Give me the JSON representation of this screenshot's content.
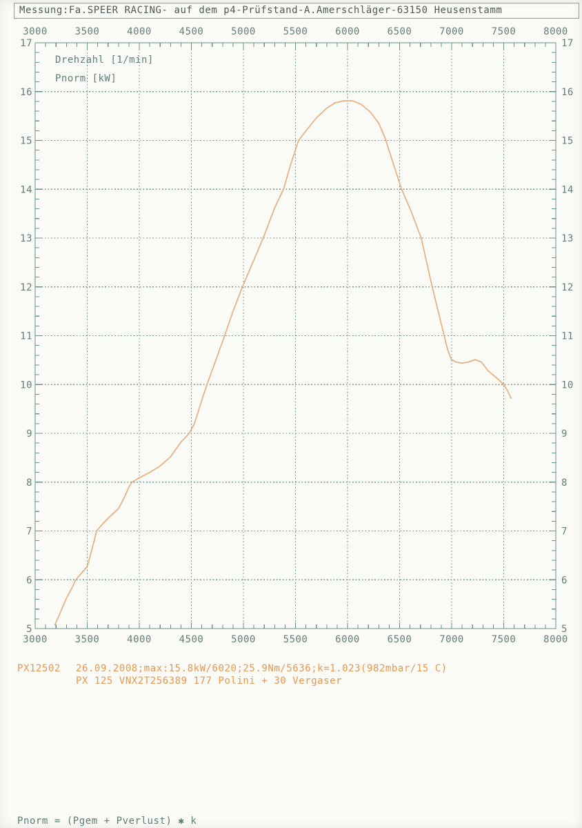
{
  "header": {
    "title": "Messung:Fa.SPEER RACING- auf dem p4-Prüfstand-A.Amerschläger-63150 Heusenstamm"
  },
  "chart_data": {
    "type": "line",
    "title": "",
    "xlabel": "Drehzahl [1/min]",
    "ylabel": "Pnorm [kW]",
    "xlim": [
      3000,
      8000
    ],
    "ylim": [
      5,
      17
    ],
    "x_ticks": [
      3000,
      3500,
      4000,
      4500,
      5000,
      5500,
      6000,
      6500,
      7000,
      7500,
      8000
    ],
    "y_ticks": [
      5,
      6,
      7,
      8,
      9,
      10,
      11,
      12,
      13,
      14,
      15,
      16,
      17
    ],
    "x_minor_step": 100,
    "y_minor_step": 0.2,
    "grid": "dashed",
    "legend_position": "top-left",
    "series": [
      {
        "name": "Pnorm [kW] vs Drehzahl [1/min]",
        "max_label": "15.8kW/6020",
        "points": [
          [
            3190,
            5.08
          ],
          [
            3240,
            5.32
          ],
          [
            3300,
            5.62
          ],
          [
            3350,
            5.82
          ],
          [
            3390,
            6.0
          ],
          [
            3450,
            6.15
          ],
          [
            3500,
            6.27
          ],
          [
            3545,
            6.62
          ],
          [
            3590,
            7.0
          ],
          [
            3650,
            7.15
          ],
          [
            3700,
            7.26
          ],
          [
            3750,
            7.36
          ],
          [
            3800,
            7.46
          ],
          [
            3855,
            7.68
          ],
          [
            3900,
            7.9
          ],
          [
            3930,
            8.0
          ],
          [
            4000,
            8.09
          ],
          [
            4100,
            8.2
          ],
          [
            4200,
            8.33
          ],
          [
            4300,
            8.52
          ],
          [
            4400,
            8.82
          ],
          [
            4480,
            9.0
          ],
          [
            4530,
            9.2
          ],
          [
            4600,
            9.68
          ],
          [
            4650,
            10.0
          ],
          [
            4710,
            10.35
          ],
          [
            4820,
            11.0
          ],
          [
            4900,
            11.5
          ],
          [
            4990,
            12.0
          ],
          [
            5100,
            12.55
          ],
          [
            5190,
            13.0
          ],
          [
            5300,
            13.62
          ],
          [
            5385,
            14.0
          ],
          [
            5450,
            14.48
          ],
          [
            5530,
            15.0
          ],
          [
            5610,
            15.22
          ],
          [
            5700,
            15.46
          ],
          [
            5800,
            15.66
          ],
          [
            5880,
            15.77
          ],
          [
            5960,
            15.81
          ],
          [
            6050,
            15.81
          ],
          [
            6130,
            15.74
          ],
          [
            6220,
            15.58
          ],
          [
            6300,
            15.35
          ],
          [
            6360,
            15.05
          ],
          [
            6420,
            14.65
          ],
          [
            6520,
            14.0
          ],
          [
            6610,
            13.55
          ],
          [
            6707,
            13.0
          ],
          [
            6760,
            12.5
          ],
          [
            6813,
            12.0
          ],
          [
            6870,
            11.5
          ],
          [
            6928,
            11.0
          ],
          [
            6960,
            10.72
          ],
          [
            6995,
            10.52
          ],
          [
            7040,
            10.46
          ],
          [
            7100,
            10.44
          ],
          [
            7160,
            10.46
          ],
          [
            7225,
            10.51
          ],
          [
            7285,
            10.46
          ],
          [
            7350,
            10.28
          ],
          [
            7440,
            10.12
          ],
          [
            7500,
            10.0
          ],
          [
            7540,
            9.86
          ],
          [
            7570,
            9.72
          ]
        ]
      }
    ]
  },
  "annotations": {
    "run_id": "PX12502",
    "line1": "26.09.2008;max:15.8kW/6020;25.9Nm/5636;k=1.023(982mbar/15 C)",
    "line2": "PX 125 VNX2T256389 177 Polini + 30 Vergaser"
  },
  "footer": {
    "formula": "Pnorm = (Pgem + Pverlust) ✱ k"
  },
  "colors": {
    "paper": "#fafaf6",
    "header_text": "#4e5a55",
    "header_border": "#98988f",
    "grid": "#6e958c",
    "axis": "#68918a",
    "axis_label": "#647e77",
    "curve": "#e9ad7e",
    "annotation": "#e5984f",
    "footer_text": "#5b7d73"
  }
}
